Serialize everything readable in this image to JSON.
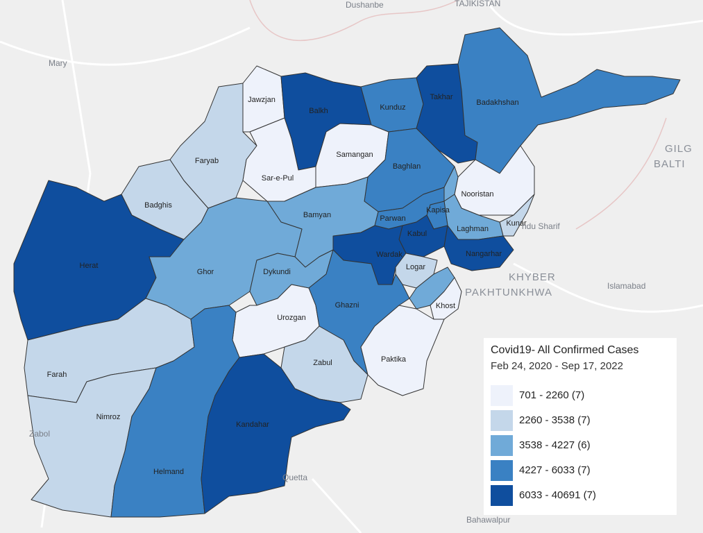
{
  "legend": {
    "title": "Covid19- All Confirmed Cases",
    "subtitle": "Feb 24, 2020 - Sep 17, 2022",
    "items": [
      {
        "label": "701 - 2260 (7)",
        "color": "#eef2fb"
      },
      {
        "label": "2260 - 3538 (7)",
        "color": "#c4d7ea"
      },
      {
        "label": "3538 - 4227 (6)",
        "color": "#70aad8"
      },
      {
        "label": "4227 - 6033 (7)",
        "color": "#3a81c3"
      },
      {
        "label": "6033 - 40691 (7)",
        "color": "#0f4e9e"
      }
    ]
  },
  "provinces": [
    {
      "name": "Herat",
      "color": "#0f4e9e"
    },
    {
      "name": "Badghis",
      "color": "#c4d7ea"
    },
    {
      "name": "Faryab",
      "color": "#c4d7ea"
    },
    {
      "name": "Jawzjan",
      "color": "#eef2fb"
    },
    {
      "name": "Balkh",
      "color": "#0f4e9e"
    },
    {
      "name": "Sar-e-Pul",
      "color": "#eef2fb"
    },
    {
      "name": "Samangan",
      "color": "#eef2fb"
    },
    {
      "name": "Kunduz",
      "color": "#3a81c3"
    },
    {
      "name": "Takhar",
      "color": "#0f4e9e"
    },
    {
      "name": "Badakhshan",
      "color": "#3a81c3"
    },
    {
      "name": "Baghlan",
      "color": "#3a81c3"
    },
    {
      "name": "Nooristan",
      "color": "#eef2fb"
    },
    {
      "name": null,
      "color": "#70aad8"
    },
    {
      "name": "Kunar",
      "color": "#c4d7ea"
    },
    {
      "name": "Laghman",
      "color": "#70aad8"
    },
    {
      "name": "Kapisa",
      "color": "#3a81c3"
    },
    {
      "name": "Parwan",
      "color": "#3a81c3"
    },
    {
      "name": "Kabul",
      "color": "#0f4e9e"
    },
    {
      "name": "Nangarhar",
      "color": "#0f4e9e"
    },
    {
      "name": "Wardak",
      "color": "#0f4e9e"
    },
    {
      "name": "Logar",
      "color": "#c4d7ea"
    },
    {
      "name": null,
      "color": "#70aad8"
    },
    {
      "name": "Khost",
      "color": "#eef2fb"
    },
    {
      "name": "Bamyan",
      "color": "#70aad8"
    },
    {
      "name": "Ghor",
      "color": "#70aad8"
    },
    {
      "name": "Dykundi",
      "color": "#70aad8"
    },
    {
      "name": "Urozgan",
      "color": "#eef2fb"
    },
    {
      "name": "Ghazni",
      "color": "#3a81c3"
    },
    {
      "name": "Zabul",
      "color": "#c4d7ea"
    },
    {
      "name": "Paktika",
      "color": "#eef2fb"
    },
    {
      "name": "Farah",
      "color": "#c4d7ea"
    },
    {
      "name": "Nimroz",
      "color": "#c4d7ea"
    },
    {
      "name": "Helmand",
      "color": "#3a81c3"
    },
    {
      "name": "Kandahar",
      "color": "#0f4e9e"
    }
  ],
  "places": [
    "Dushanbe",
    "TAJIKISTAN",
    "Mary",
    "Zabol",
    "KHYBER",
    "PAKHTUNKHWA",
    "Islamabad",
    "Quetta",
    "Bahawalpur",
    "GILG",
    "BALTI",
    "ndu Sharif"
  ]
}
